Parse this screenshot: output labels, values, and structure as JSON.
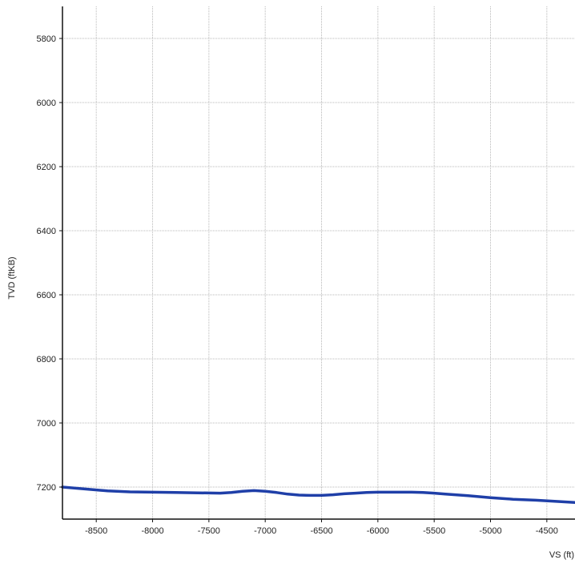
{
  "chart_data": {
    "type": "line",
    "title": "",
    "xlabel": "VS (ft)",
    "ylabel": "TVD (ftKB)",
    "xlim": [
      -8800,
      -4250
    ],
    "ylim": [
      7300,
      5700
    ],
    "y_inverted": true,
    "grid": true,
    "x_ticks": [
      -8500,
      -8000,
      -7500,
      -7000,
      -6500,
      -6000,
      -5500,
      -5000,
      -4500
    ],
    "x_tick_labels": [
      "-8500",
      "-8000",
      "-7500",
      "-7000",
      "-6500",
      "-6000",
      "-5500",
      "-5000",
      "-4500"
    ],
    "y_ticks": [
      5800,
      6000,
      6200,
      6400,
      6600,
      6800,
      7000,
      7200
    ],
    "y_tick_labels": [
      "5800",
      "6000",
      "6200",
      "6400",
      "6600",
      "6800",
      "7000",
      "7200"
    ],
    "series": [
      {
        "color": "#1f3fa8",
        "x": [
          -8800,
          -8600,
          -8400,
          -8200,
          -8000,
          -7800,
          -7600,
          -7400,
          -7300,
          -7200,
          -7100,
          -7000,
          -6900,
          -6800,
          -6700,
          -6600,
          -6500,
          -6400,
          -6300,
          -6200,
          -6100,
          -6000,
          -5900,
          -5800,
          -5700,
          -5600,
          -5500,
          -5400,
          -5200,
          -5000,
          -4800,
          -4600,
          -4400,
          -4250
        ],
        "y": [
          7200,
          7206,
          7212,
          7215,
          7216,
          7217,
          7218,
          7219,
          7217,
          7213,
          7211,
          7213,
          7217,
          7222,
          7225,
          7226,
          7226,
          7224,
          7221,
          7219,
          7217,
          7216,
          7216,
          7216,
          7216,
          7217,
          7219,
          7222,
          7227,
          7233,
          7238,
          7241,
          7245,
          7248
        ]
      }
    ]
  }
}
